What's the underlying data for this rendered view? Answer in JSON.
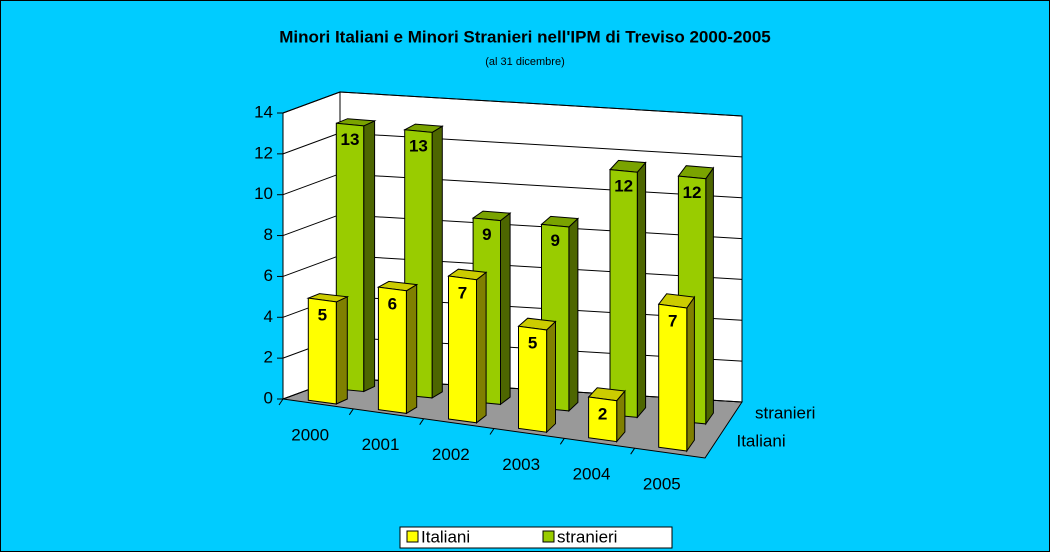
{
  "chart_data": {
    "type": "bar3d",
    "title": "Minori Italiani e Minori Stranieri nell'IPM di Treviso 2000-2005",
    "subtitle": "(al 31 dicembre)",
    "categories": [
      "2000",
      "2001",
      "2002",
      "2003",
      "2004",
      "2005"
    ],
    "series": [
      {
        "name": "Italiani",
        "color": "#ffff00",
        "values": [
          5,
          6,
          7,
          5,
          2,
          7
        ]
      },
      {
        "name": "stranieri",
        "color": "#99cc00",
        "values": [
          13,
          13,
          9,
          9,
          12,
          12
        ]
      }
    ],
    "ylim": [
      0,
      14
    ],
    "yticks": [
      0,
      2,
      4,
      6,
      8,
      10,
      12,
      14
    ],
    "grid": true,
    "legend": "bottom"
  }
}
